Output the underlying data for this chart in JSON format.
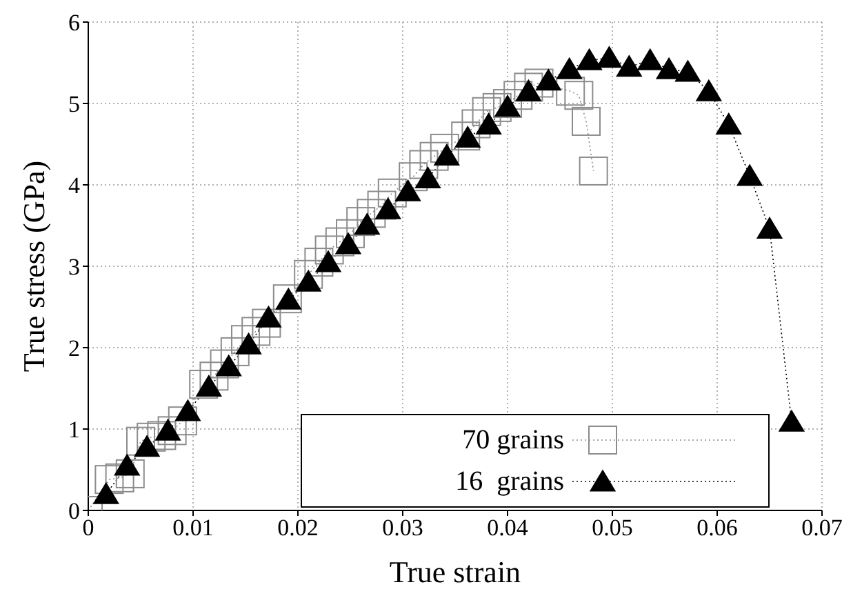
{
  "chart_data": {
    "type": "line",
    "xlabel": "True strain",
    "ylabel": "True stress (GPa)",
    "xlim": [
      0,
      0.07
    ],
    "ylim": [
      0,
      6
    ],
    "xticks": [
      0,
      0.01,
      0.02,
      0.03,
      0.04,
      0.05,
      0.06,
      0.07
    ],
    "yticks": [
      0,
      1,
      2,
      3,
      4,
      5,
      6
    ],
    "grid": true,
    "legend": "bottom",
    "line_style": "dotted",
    "series": [
      {
        "name": "70 grains",
        "color": "#8c8c8c",
        "marker": "square",
        "x": [
          0,
          0.002,
          0.003,
          0.004,
          0.005,
          0.006,
          0.007,
          0.008,
          0.009,
          0.011,
          0.012,
          0.013,
          0.014,
          0.015,
          0.016,
          0.017,
          0.019,
          0.021,
          0.022,
          0.023,
          0.024,
          0.025,
          0.026,
          0.027,
          0.028,
          0.029,
          0.031,
          0.032,
          0.033,
          0.034,
          0.036,
          0.037,
          0.038,
          0.039,
          0.04,
          0.041,
          0.042,
          0.043,
          0.046,
          0.0468,
          0.0475,
          0.0482
        ],
        "values": [
          0,
          0.38,
          0.4,
          0.45,
          0.85,
          0.9,
          0.92,
          0.98,
          1.1,
          1.55,
          1.65,
          1.8,
          1.95,
          2.1,
          2.2,
          2.3,
          2.6,
          2.9,
          3.05,
          3.2,
          3.3,
          3.4,
          3.55,
          3.65,
          3.75,
          3.9,
          4.1,
          4.25,
          4.35,
          4.45,
          4.6,
          4.75,
          4.9,
          4.95,
          5.0,
          5.1,
          5.2,
          5.25,
          5.15,
          5.1,
          4.78,
          4.17
        ]
      },
      {
        "name": "16  grains",
        "color": "#000000",
        "marker": "triangle",
        "x": [
          0.0017,
          0.0037,
          0.0056,
          0.0076,
          0.0095,
          0.0115,
          0.0134,
          0.0153,
          0.0172,
          0.0191,
          0.021,
          0.0229,
          0.0248,
          0.0266,
          0.0286,
          0.0305,
          0.0324,
          0.0342,
          0.0362,
          0.0382,
          0.04,
          0.042,
          0.0439,
          0.0459,
          0.0478,
          0.0497,
          0.0516,
          0.0536,
          0.0554,
          0.0572,
          0.0592,
          0.0611,
          0.0631,
          0.065,
          0.0671
        ],
        "values": [
          0.2,
          0.55,
          0.78,
          0.98,
          1.22,
          1.52,
          1.77,
          2.04,
          2.37,
          2.59,
          2.81,
          3.05,
          3.27,
          3.51,
          3.7,
          3.92,
          4.08,
          4.36,
          4.58,
          4.74,
          4.96,
          5.15,
          5.28,
          5.42,
          5.53,
          5.56,
          5.45,
          5.53,
          5.42,
          5.39,
          5.15,
          4.74,
          4.11,
          3.46,
          1.09
        ]
      }
    ]
  }
}
